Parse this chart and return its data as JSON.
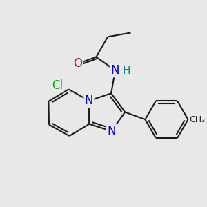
{
  "background_color": "#e8e8e8",
  "bond_color": "#1a1a1a",
  "atom_colors": {
    "O": "#dd0000",
    "N": "#0000cc",
    "Cl": "#00aa00",
    "H": "#008888",
    "C": "#1a1a1a"
  },
  "lw": 1.5,
  "dbo": 0.09,
  "fs": 12
}
